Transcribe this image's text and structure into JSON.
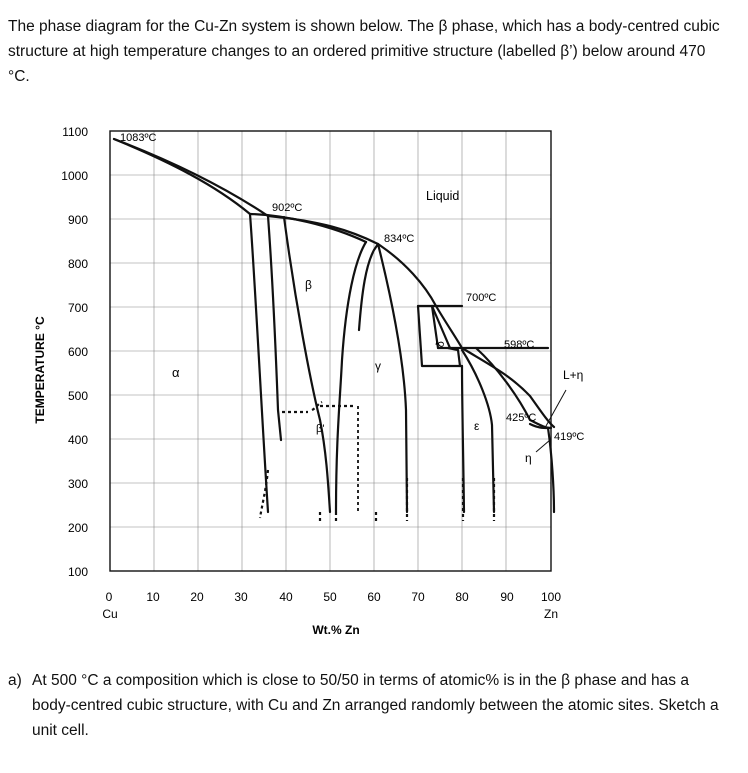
{
  "intro_text": "The phase diagram for the Cu-Zn system is shown below. The β phase, which has a body-centred cubic structure at high temperature changes to an ordered primitive structure (labelled β’) below around 470 °C.",
  "question": {
    "label": "a)",
    "text": "At 500 °C a composition which is close to 50/50 in terms of atomic% is in the β phase and has a body-centred cubic structure, with Cu and Zn arranged randomly between the atomic sites. Sketch a unit cell."
  },
  "diagram": {
    "y_axis_label": "TEMPERATURE °C",
    "x_axis_label": "Wt.% Zn",
    "y_ticks": [
      "1100",
      "1000",
      "900",
      "800",
      "700",
      "600",
      "500",
      "400",
      "300",
      "200",
      "100"
    ],
    "x_ticks": [
      "0",
      "10",
      "20",
      "30",
      "40",
      "50",
      "60",
      "70",
      "80",
      "90",
      "100"
    ],
    "x_end_left": "Cu",
    "x_end_right": "Zn",
    "phase_labels": {
      "alpha": "α",
      "beta": "β",
      "beta_prime": "β'",
      "gamma": "γ",
      "delta": "δ",
      "epsilon": "ε",
      "eta": "η",
      "liquid": "Liquid",
      "l_eta": "L+η"
    },
    "temperature_annotations": [
      "1083ºC",
      "902ºC",
      "834ºC",
      "700ºC",
      "598ºC",
      "425ºC",
      "419ºC"
    ]
  }
}
